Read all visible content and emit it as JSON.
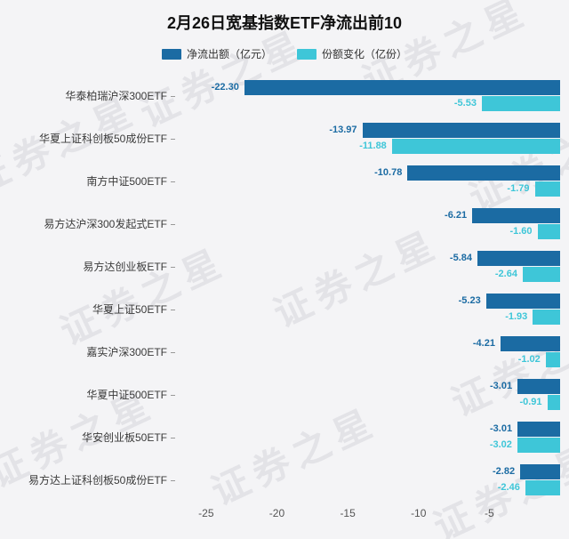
{
  "title": "2月26日宽基指数ETF净流出前10",
  "watermark": "证券之星",
  "colors": {
    "netflow": "#1b6ba3",
    "share_change": "#3ec6d8",
    "background": "#f4f4f6"
  },
  "chart_data": {
    "type": "bar",
    "orientation": "horizontal",
    "title": "2月26日宽基指数ETF净流出前10",
    "categories": [
      "华泰柏瑞沪深300ETF",
      "华夏上证科创板50成份ETF",
      "南方中证500ETF",
      "易方达沪深300发起式ETF",
      "易方达创业板ETF",
      "华夏上证50ETF",
      "嘉实沪深300ETF",
      "华夏中证500ETF",
      "华安创业板50ETF",
      "易方达上证科创板50成份ETF"
    ],
    "series": [
      {
        "name": "净流出额（亿元）",
        "color": "#1b6ba3",
        "values": [
          -22.3,
          -13.97,
          -10.78,
          -6.21,
          -5.84,
          -5.23,
          -4.21,
          -3.01,
          -3.01,
          -2.82
        ]
      },
      {
        "name": "份额变化（亿份）",
        "color": "#3ec6d8",
        "values": [
          -5.53,
          -11.88,
          -1.79,
          -1.6,
          -2.64,
          -1.93,
          -1.02,
          -0.91,
          -3.02,
          -2.46
        ]
      }
    ],
    "xlim": [
      -27,
      0
    ],
    "xticks": [
      -25,
      -20,
      -15,
      -10,
      -5
    ],
    "grid": false,
    "legend_position": "top"
  }
}
